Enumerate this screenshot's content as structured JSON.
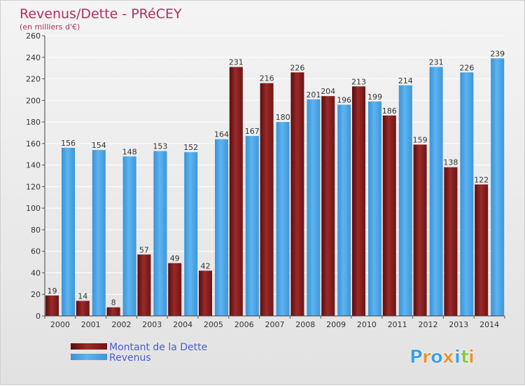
{
  "chart_data": {
    "type": "bar",
    "title": "Revenus/Dette - PRéCEY",
    "subtitle": "(en milliers d'€)",
    "categories": [
      "2000",
      "2001",
      "2002",
      "2003",
      "2004",
      "2005",
      "2006",
      "2007",
      "2008",
      "2009",
      "2010",
      "2011",
      "2012",
      "2013",
      "2014"
    ],
    "series": [
      {
        "name": "Montant de la Dette",
        "color": "#8b1a1a",
        "values": [
          19,
          14,
          8,
          57,
          49,
          42,
          231,
          216,
          226,
          204,
          213,
          186,
          159,
          138,
          122
        ]
      },
      {
        "name": "Revenus",
        "color": "#4ea6e6",
        "values": [
          156,
          154,
          148,
          153,
          152,
          164,
          167,
          180,
          201,
          196,
          199,
          214,
          231,
          226,
          239
        ]
      }
    ],
    "ylim": [
      0,
      260
    ],
    "yticks": [
      0,
      20,
      40,
      60,
      80,
      100,
      120,
      140,
      160,
      180,
      200,
      220,
      240,
      260
    ],
    "grid": true,
    "legend_position": "bottom-left",
    "xlabel": "",
    "ylabel": ""
  },
  "brand": {
    "name": "Proxiti",
    "letters": [
      "P",
      "r",
      "o",
      "x",
      "i",
      "t",
      "i"
    ],
    "letter_colors": [
      "#3aa0e0",
      "#e8922a",
      "#3aa0e0",
      "#e8922a",
      "#3aa0e0",
      "#8cc63f",
      "#e8922a"
    ]
  }
}
